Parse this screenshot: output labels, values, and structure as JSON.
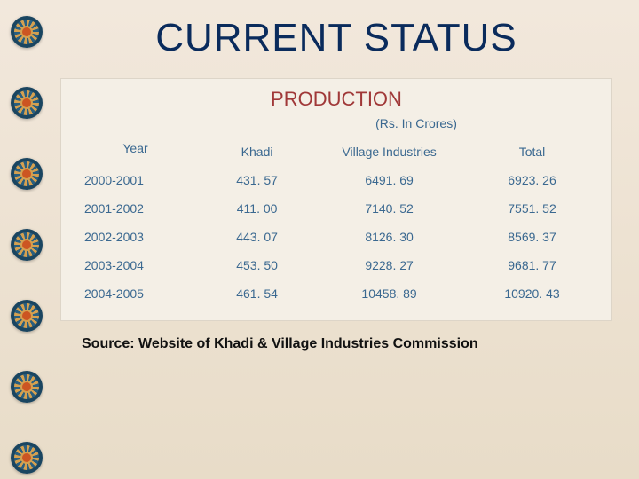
{
  "title": "CURRENT STATUS",
  "subtitle": "PRODUCTION",
  "unit_label": "(Rs. In Crores)",
  "columns": {
    "year": "Year",
    "khadi": "Khadi",
    "village": "Village Industries",
    "total": "Total"
  },
  "rows": [
    {
      "year": "2000-2001",
      "khadi": "431. 57",
      "village": "6491. 69",
      "total": "6923. 26"
    },
    {
      "year": "2001-2002",
      "khadi": "411. 00",
      "village": "7140. 52",
      "total": "7551. 52"
    },
    {
      "year": "2002-2003",
      "khadi": "443. 07",
      "village": "8126. 30",
      "total": "8569. 37"
    },
    {
      "year": "2003-2004",
      "khadi": "453. 50",
      "village": "9228. 27",
      "total": "9681. 77"
    },
    {
      "year": "2004-2005",
      "khadi": "461. 54",
      "village": "10458. 89",
      "total": "10920. 43"
    }
  ],
  "source": "Source: Website of Khadi & Village Industries Commission",
  "colors": {
    "title": "#0a2b5c",
    "subtitle": "#a03838",
    "table_text": "#3a6890",
    "block_bg": "#f4efe6",
    "page_bg_top": "#f2e8dc",
    "page_bg_bottom": "#e8dcc8"
  }
}
